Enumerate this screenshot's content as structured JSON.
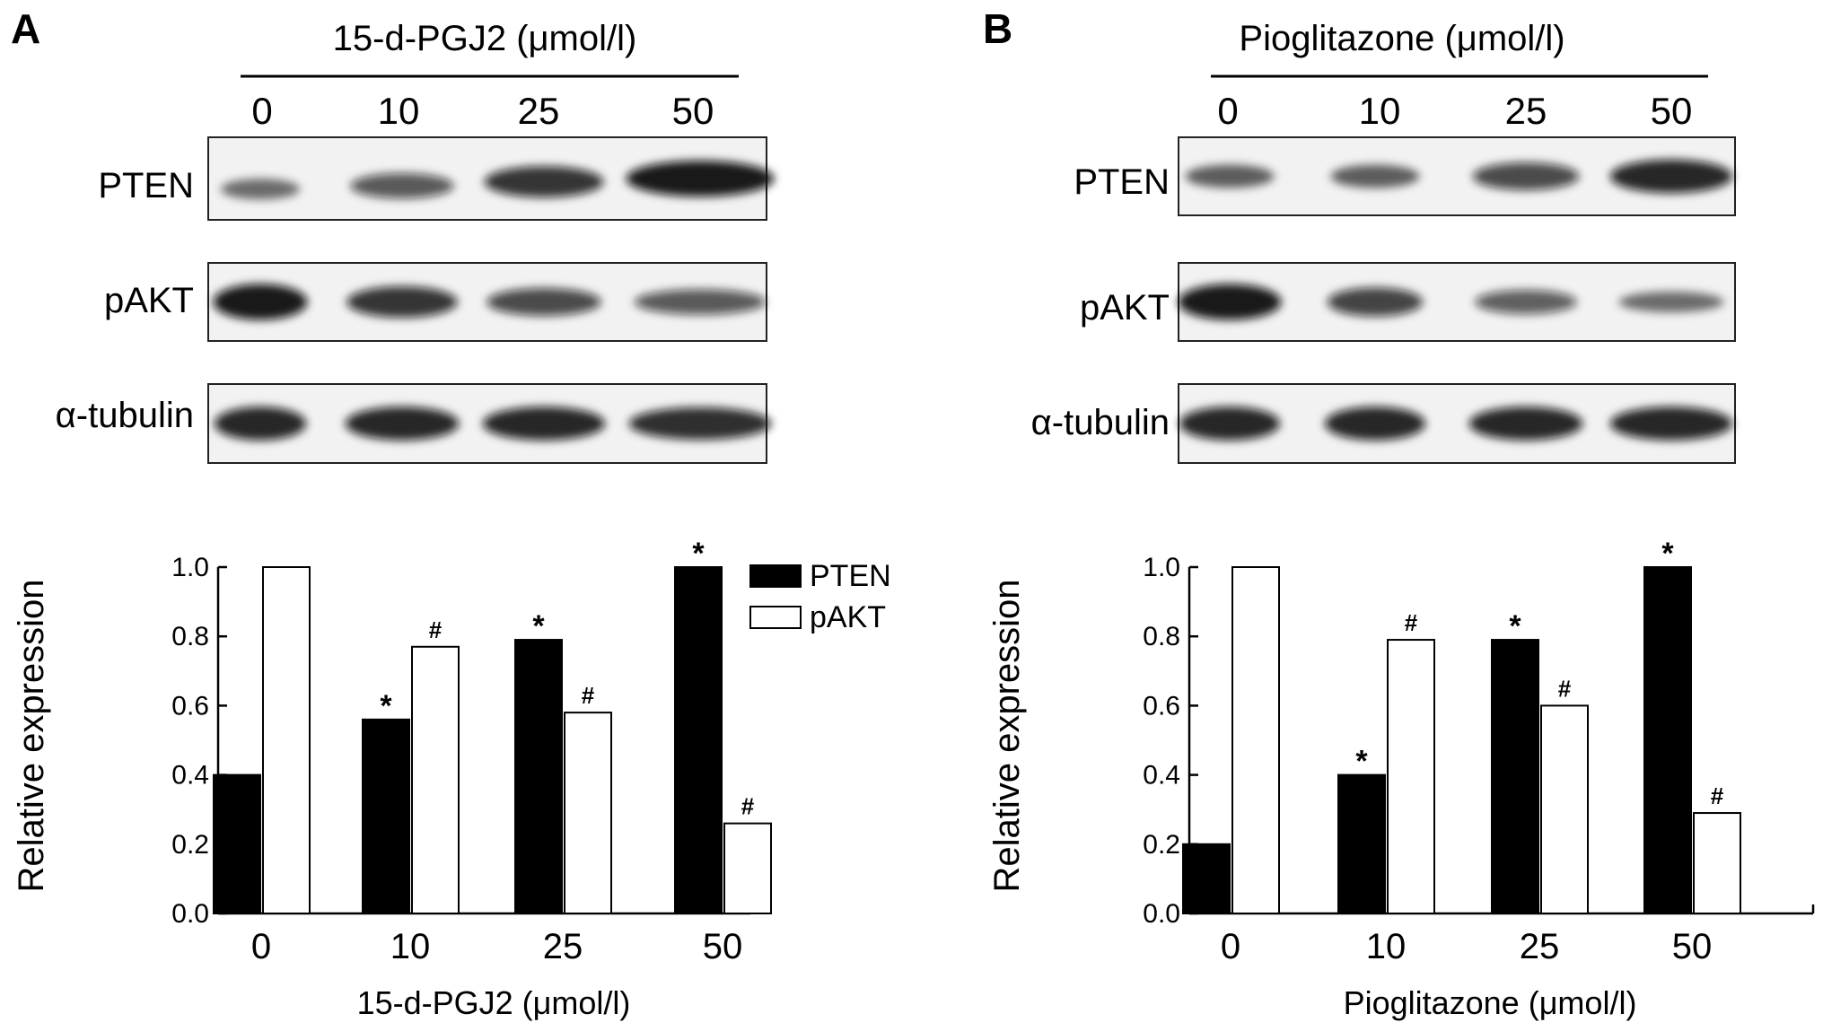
{
  "panels": [
    {
      "label": "A",
      "blot": {
        "treatment_label": "15-d-PGJ2 (μmol/l)",
        "lanes": [
          "0",
          "10",
          "25",
          "50"
        ],
        "proteins": [
          {
            "name": "PTEN",
            "intensity": [
              0.35,
              0.55,
              0.8,
              1.0
            ]
          },
          {
            "name": "pAKT",
            "intensity": [
              1.0,
              0.8,
              0.65,
              0.55
            ]
          },
          {
            "name": "α-tubulin",
            "intensity": [
              0.9,
              0.9,
              0.9,
              0.85
            ]
          }
        ]
      },
      "chart_data": {
        "type": "bar",
        "categories": [
          "0",
          "10",
          "25",
          "50"
        ],
        "series": [
          {
            "name": "PTEN",
            "color": "#000000",
            "values": [
              0.4,
              0.56,
              0.79,
              1.0
            ],
            "marks": [
              "",
              "*",
              "*",
              "*"
            ]
          },
          {
            "name": "pAKT",
            "color": "#ffffff",
            "values": [
              1.0,
              0.77,
              0.58,
              0.26
            ],
            "marks": [
              "",
              "#",
              "#",
              "#"
            ]
          }
        ],
        "xlabel": "15-d-PGJ2 (μmol/l)",
        "ylabel": "Relative expression",
        "ylim": [
          0,
          1.0
        ],
        "yticks": [
          "0.0",
          "0.2",
          "0.4",
          "0.6",
          "0.8",
          "1.0"
        ],
        "legend": "top-right"
      }
    },
    {
      "label": "B",
      "blot": {
        "treatment_label": "Pioglitazone (μmol/l)",
        "lanes": [
          "0",
          "10",
          "25",
          "50"
        ],
        "proteins": [
          {
            "name": "PTEN",
            "intensity": [
              0.45,
              0.45,
              0.65,
              0.9
            ]
          },
          {
            "name": "pAKT",
            "intensity": [
              1.0,
              0.7,
              0.5,
              0.35
            ]
          },
          {
            "name": "α-tubulin",
            "intensity": [
              0.9,
              0.9,
              0.9,
              0.9
            ]
          }
        ]
      },
      "chart_data": {
        "type": "bar",
        "categories": [
          "0",
          "10",
          "25",
          "50"
        ],
        "series": [
          {
            "name": "PTEN",
            "color": "#000000",
            "values": [
              0.2,
              0.4,
              0.79,
              1.0
            ],
            "marks": [
              "",
              "*",
              "*",
              "*"
            ]
          },
          {
            "name": "pAKT",
            "color": "#ffffff",
            "values": [
              1.0,
              0.79,
              0.6,
              0.29
            ],
            "marks": [
              "",
              "#",
              "#",
              "#"
            ]
          }
        ],
        "xlabel": "Pioglitazone (μmol/l)",
        "ylabel": "Relative expression",
        "ylim": [
          0,
          1.0
        ],
        "yticks": [
          "0.0",
          "0.2",
          "0.4",
          "0.6",
          "0.8",
          "1.0"
        ],
        "legend": "none"
      }
    }
  ]
}
